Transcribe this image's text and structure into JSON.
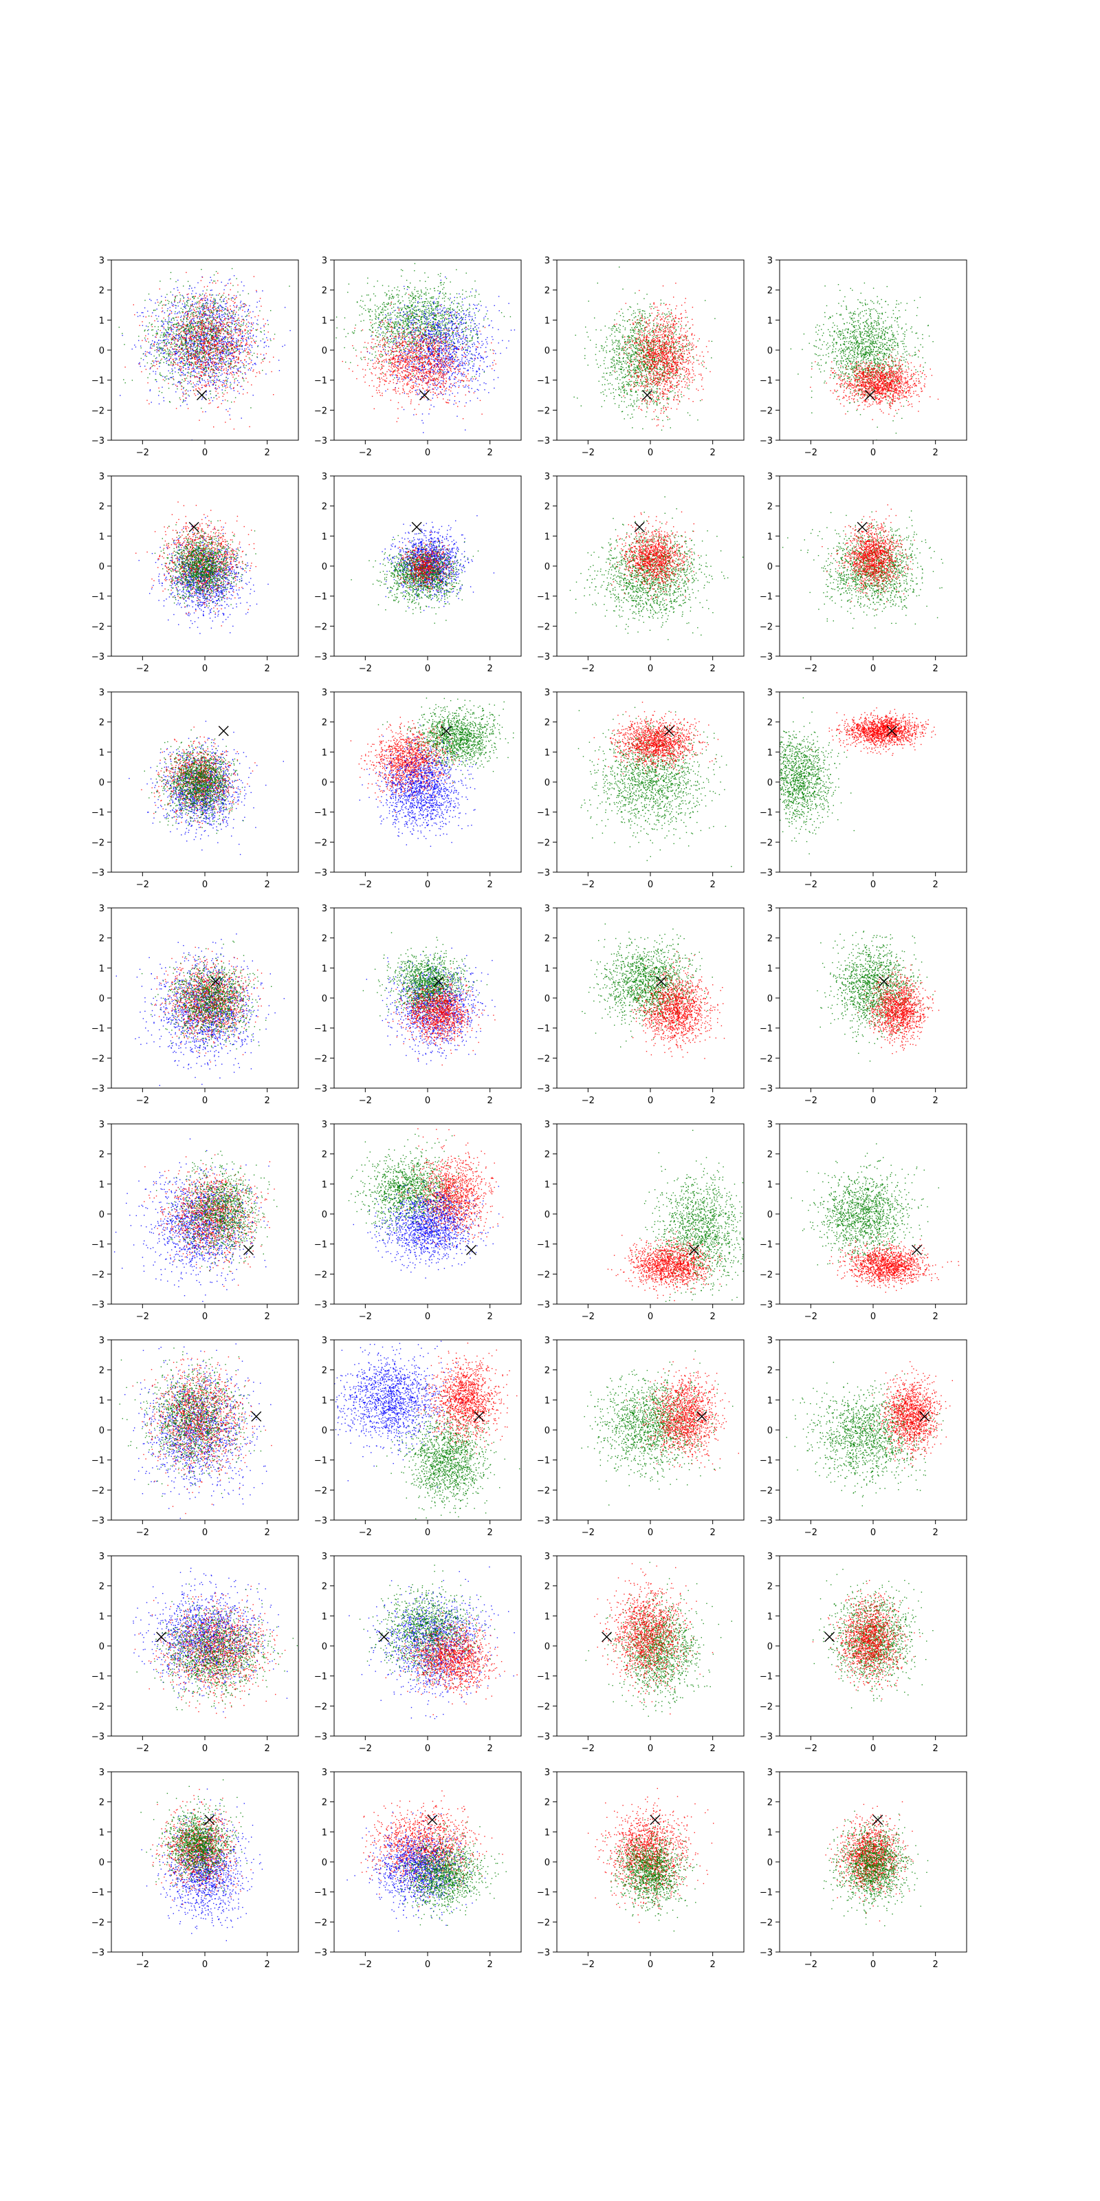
{
  "chart_data": {
    "type": "scatter",
    "layout": {
      "rows": 8,
      "cols": 4
    },
    "xlim": [
      -3,
      3
    ],
    "ylim": [
      -3,
      3
    ],
    "xticks": [
      -2,
      0,
      2
    ],
    "yticks": [
      -3,
      -2,
      -1,
      0,
      1,
      2,
      3
    ],
    "grid": false,
    "legend": "none",
    "marker_style": "x",
    "colors": {
      "red": "#ff0000",
      "green": "#008000",
      "blue": "#0000ff",
      "marker": "#000000"
    },
    "rows": [
      {
        "marker": [
          -0.1,
          -1.5
        ],
        "panels": [
          {
            "clusters": [
              {
                "color": "blue",
                "mx": 0,
                "my": 0.3,
                "sx": 0.85,
                "sy": 0.85,
                "n": 1400
              },
              {
                "color": "green",
                "mx": -0.2,
                "my": 0.4,
                "sx": 0.8,
                "sy": 0.8,
                "n": 1100
              },
              {
                "color": "red",
                "mx": 0.1,
                "my": 0.2,
                "sx": 0.8,
                "sy": 0.8,
                "n": 1100
              }
            ]
          },
          {
            "clusters": [
              {
                "color": "green",
                "mx": -0.3,
                "my": 0.9,
                "sx": 0.9,
                "sy": 0.65,
                "n": 1300
              },
              {
                "color": "blue",
                "mx": 0.4,
                "my": 0.1,
                "sx": 0.8,
                "sy": 0.8,
                "n": 1200
              },
              {
                "color": "red",
                "mx": -0.3,
                "my": -0.4,
                "sx": 0.75,
                "sy": 0.6,
                "n": 1200
              }
            ]
          },
          {
            "clusters": [
              {
                "color": "green",
                "mx": -0.2,
                "my": -0.3,
                "sx": 0.7,
                "sy": 0.8,
                "n": 1300
              },
              {
                "color": "red",
                "mx": 0.4,
                "my": -0.2,
                "sx": 0.5,
                "sy": 0.75,
                "n": 1300
              }
            ]
          },
          {
            "clusters": [
              {
                "color": "green",
                "mx": -0.2,
                "my": 0,
                "sx": 0.7,
                "sy": 0.75,
                "n": 1300
              },
              {
                "color": "red",
                "mx": 0.2,
                "my": -1.1,
                "sx": 0.6,
                "sy": 0.35,
                "n": 1300
              }
            ]
          }
        ]
      },
      {
        "marker": [
          -0.35,
          1.3
        ],
        "panels": [
          {
            "clusters": [
              {
                "color": "blue",
                "mx": 0,
                "my": -0.4,
                "sx": 0.6,
                "sy": 0.6,
                "n": 1200
              },
              {
                "color": "red",
                "mx": -0.1,
                "my": 0.2,
                "sx": 0.6,
                "sy": 0.6,
                "n": 1000
              },
              {
                "color": "green",
                "mx": -0.1,
                "my": 0,
                "sx": 0.5,
                "sy": 0.5,
                "n": 1200
              }
            ]
          },
          {
            "clusters": [
              {
                "color": "blue",
                "mx": 0,
                "my": 0.1,
                "sx": 0.5,
                "sy": 0.5,
                "n": 1400
              },
              {
                "color": "green",
                "mx": -0.2,
                "my": -0.3,
                "sx": 0.55,
                "sy": 0.45,
                "n": 1200
              },
              {
                "color": "red",
                "mx": -0.1,
                "my": 0,
                "sx": 0.35,
                "sy": 0.35,
                "n": 500
              }
            ]
          },
          {
            "clusters": [
              {
                "color": "green",
                "mx": 0,
                "my": -0.3,
                "sx": 0.8,
                "sy": 0.7,
                "n": 1400
              },
              {
                "color": "red",
                "mx": 0.1,
                "my": 0.3,
                "sx": 0.45,
                "sy": 0.45,
                "n": 1100
              }
            ]
          },
          {
            "clusters": [
              {
                "color": "green",
                "mx": 0,
                "my": -0.1,
                "sx": 0.75,
                "sy": 0.65,
                "n": 1300
              },
              {
                "color": "red",
                "mx": 0,
                "my": 0.3,
                "sx": 0.4,
                "sy": 0.5,
                "n": 1200
              }
            ]
          }
        ]
      },
      {
        "marker": [
          0.6,
          1.7
        ],
        "panels": [
          {
            "clusters": [
              {
                "color": "blue",
                "mx": -0.1,
                "my": -0.3,
                "sx": 0.6,
                "sy": 0.65,
                "n": 1200
              },
              {
                "color": "red",
                "mx": -0.2,
                "my": 0.1,
                "sx": 0.55,
                "sy": 0.55,
                "n": 900
              },
              {
                "color": "green",
                "mx": -0.2,
                "my": 0,
                "sx": 0.5,
                "sy": 0.55,
                "n": 1300
              }
            ]
          },
          {
            "clusters": [
              {
                "color": "green",
                "mx": 0.9,
                "my": 1.5,
                "sx": 0.65,
                "sy": 0.45,
                "n": 1300
              },
              {
                "color": "red",
                "mx": -0.6,
                "my": 0.7,
                "sx": 0.55,
                "sy": 0.5,
                "n": 1200
              },
              {
                "color": "blue",
                "mx": -0.2,
                "my": -0.2,
                "sx": 0.6,
                "sy": 0.65,
                "n": 1300
              }
            ]
          },
          {
            "clusters": [
              {
                "color": "green",
                "mx": 0,
                "my": 0.1,
                "sx": 0.85,
                "sy": 0.8,
                "n": 1400
              },
              {
                "color": "red",
                "mx": 0.2,
                "my": 1.3,
                "sx": 0.6,
                "sy": 0.35,
                "n": 1300
              }
            ]
          },
          {
            "clusters": [
              {
                "color": "green",
                "mx": -2.4,
                "my": 0.1,
                "sx": 0.5,
                "sy": 0.75,
                "n": 1200
              },
              {
                "color": "red",
                "mx": 0.3,
                "my": 1.7,
                "sx": 0.6,
                "sy": 0.25,
                "n": 1400
              }
            ]
          }
        ]
      },
      {
        "marker": [
          0.35,
          0.55
        ],
        "panels": [
          {
            "clusters": [
              {
                "color": "blue",
                "mx": 0,
                "my": -0.4,
                "sx": 0.75,
                "sy": 0.8,
                "n": 1300
              },
              {
                "color": "red",
                "mx": 0.1,
                "my": -0.1,
                "sx": 0.6,
                "sy": 0.6,
                "n": 1100
              },
              {
                "color": "green",
                "mx": 0.2,
                "my": -0.1,
                "sx": 0.6,
                "sy": 0.6,
                "n": 1100
              }
            ]
          },
          {
            "clusters": [
              {
                "color": "blue",
                "mx": 0.2,
                "my": -0.3,
                "sx": 0.65,
                "sy": 0.65,
                "n": 1200
              },
              {
                "color": "green",
                "mx": 0,
                "my": 0.5,
                "sx": 0.55,
                "sy": 0.45,
                "n": 1200
              },
              {
                "color": "red",
                "mx": 0.3,
                "my": -0.5,
                "sx": 0.5,
                "sy": 0.45,
                "n": 1100
              }
            ]
          },
          {
            "clusters": [
              {
                "color": "green",
                "mx": -0.1,
                "my": 0.5,
                "sx": 0.7,
                "sy": 0.6,
                "n": 1400
              },
              {
                "color": "red",
                "mx": 0.8,
                "my": -0.4,
                "sx": 0.5,
                "sy": 0.55,
                "n": 1300
              }
            ]
          },
          {
            "clusters": [
              {
                "color": "green",
                "mx": 0,
                "my": 0.4,
                "sx": 0.6,
                "sy": 0.7,
                "n": 1300
              },
              {
                "color": "red",
                "mx": 0.8,
                "my": -0.4,
                "sx": 0.4,
                "sy": 0.5,
                "n": 1200
              }
            ]
          }
        ]
      },
      {
        "marker": [
          1.4,
          -1.2
        ],
        "panels": [
          {
            "clusters": [
              {
                "color": "blue",
                "mx": -0.2,
                "my": -0.3,
                "sx": 0.75,
                "sy": 0.8,
                "n": 1300
              },
              {
                "color": "red",
                "mx": 0.2,
                "my": 0,
                "sx": 0.7,
                "sy": 0.7,
                "n": 1100
              },
              {
                "color": "green",
                "mx": 0.5,
                "my": 0.1,
                "sx": 0.6,
                "sy": 0.7,
                "n": 1100
              }
            ]
          },
          {
            "clusters": [
              {
                "color": "green",
                "mx": -0.6,
                "my": 0.8,
                "sx": 0.7,
                "sy": 0.6,
                "n": 1200
              },
              {
                "color": "red",
                "mx": 0.8,
                "my": 0.6,
                "sx": 0.55,
                "sy": 0.65,
                "n": 1200
              },
              {
                "color": "blue",
                "mx": 0,
                "my": -0.4,
                "sx": 0.7,
                "sy": 0.55,
                "n": 1300
              }
            ]
          },
          {
            "clusters": [
              {
                "color": "green",
                "mx": 1.6,
                "my": -0.5,
                "sx": 0.65,
                "sy": 0.9,
                "n": 1300
              },
              {
                "color": "red",
                "mx": 0.6,
                "my": -1.7,
                "sx": 0.6,
                "sy": 0.35,
                "n": 1300
              }
            ]
          },
          {
            "clusters": [
              {
                "color": "green",
                "mx": -0.3,
                "my": 0,
                "sx": 0.7,
                "sy": 0.65,
                "n": 1300
              },
              {
                "color": "red",
                "mx": 0.4,
                "my": -1.7,
                "sx": 0.6,
                "sy": 0.3,
                "n": 1300
              }
            ]
          }
        ]
      },
      {
        "marker": [
          1.65,
          0.45
        ],
        "panels": [
          {
            "clusters": [
              {
                "color": "blue",
                "mx": -0.2,
                "my": 0,
                "sx": 0.8,
                "sy": 0.95,
                "n": 1300
              },
              {
                "color": "red",
                "mx": -0.2,
                "my": 0.4,
                "sx": 0.7,
                "sy": 0.8,
                "n": 1200
              },
              {
                "color": "green",
                "mx": -0.4,
                "my": 0.4,
                "sx": 0.7,
                "sy": 0.8,
                "n": 1100
              }
            ]
          },
          {
            "clusters": [
              {
                "color": "blue",
                "mx": -1.2,
                "my": 1,
                "sx": 0.75,
                "sy": 0.7,
                "n": 1400
              },
              {
                "color": "red",
                "mx": 1.2,
                "my": 1,
                "sx": 0.5,
                "sy": 0.6,
                "n": 1300
              },
              {
                "color": "green",
                "mx": 0.6,
                "my": -1,
                "sx": 0.6,
                "sy": 0.7,
                "n": 1300
              }
            ]
          },
          {
            "clusters": [
              {
                "color": "green",
                "mx": 0,
                "my": 0.2,
                "sx": 0.8,
                "sy": 0.75,
                "n": 1400
              },
              {
                "color": "red",
                "mx": 1.1,
                "my": 0.5,
                "sx": 0.5,
                "sy": 0.6,
                "n": 1300
              }
            ]
          },
          {
            "clusters": [
              {
                "color": "green",
                "mx": -0.2,
                "my": -0.2,
                "sx": 0.85,
                "sy": 0.75,
                "n": 1300
              },
              {
                "color": "red",
                "mx": 1.2,
                "my": 0.5,
                "sx": 0.4,
                "sy": 0.55,
                "n": 1300
              }
            ]
          }
        ]
      },
      {
        "marker": [
          -1.4,
          0.3
        ],
        "panels": [
          {
            "clusters": [
              {
                "color": "blue",
                "mx": 0,
                "my": 0.3,
                "sx": 0.85,
                "sy": 0.75,
                "n": 1400
              },
              {
                "color": "red",
                "mx": 0.3,
                "my": -0.1,
                "sx": 0.8,
                "sy": 0.7,
                "n": 1200
              },
              {
                "color": "green",
                "mx": 0.3,
                "my": -0.2,
                "sx": 0.8,
                "sy": 0.65,
                "n": 1100
              }
            ]
          },
          {
            "clusters": [
              {
                "color": "blue",
                "mx": 0.2,
                "my": 0.1,
                "sx": 0.8,
                "sy": 0.75,
                "n": 1300
              },
              {
                "color": "green",
                "mx": 0,
                "my": 0.5,
                "sx": 0.7,
                "sy": 0.65,
                "n": 1100
              },
              {
                "color": "red",
                "mx": 0.8,
                "my": -0.4,
                "sx": 0.6,
                "sy": 0.5,
                "n": 1200
              }
            ]
          },
          {
            "clusters": [
              {
                "color": "green",
                "mx": 0.3,
                "my": -0.1,
                "sx": 0.6,
                "sy": 0.75,
                "n": 1300
              },
              {
                "color": "red",
                "mx": -0.1,
                "my": 0.4,
                "sx": 0.55,
                "sy": 0.75,
                "n": 1300
              }
            ]
          },
          {
            "clusters": [
              {
                "color": "green",
                "mx": 0,
                "my": 0.3,
                "sx": 0.6,
                "sy": 0.75,
                "n": 1300
              },
              {
                "color": "red",
                "mx": -0.1,
                "my": 0.2,
                "sx": 0.45,
                "sy": 0.6,
                "n": 1300
              }
            ]
          }
        ]
      },
      {
        "marker": [
          0.15,
          1.4
        ],
        "panels": [
          {
            "clusters": [
              {
                "color": "blue",
                "mx": 0,
                "my": -0.3,
                "sx": 0.6,
                "sy": 0.75,
                "n": 1200
              },
              {
                "color": "red",
                "mx": -0.2,
                "my": 0.4,
                "sx": 0.55,
                "sy": 0.6,
                "n": 1000
              },
              {
                "color": "green",
                "mx": -0.2,
                "my": 0.6,
                "sx": 0.5,
                "sy": 0.55,
                "n": 1200
              }
            ]
          },
          {
            "clusters": [
              {
                "color": "red",
                "mx": -0.1,
                "my": 0.5,
                "sx": 0.75,
                "sy": 0.6,
                "n": 1300
              },
              {
                "color": "blue",
                "mx": -0.3,
                "my": -0.2,
                "sx": 0.65,
                "sy": 0.6,
                "n": 1200
              },
              {
                "color": "green",
                "mx": 0.5,
                "my": -0.4,
                "sx": 0.6,
                "sy": 0.55,
                "n": 1200
              }
            ]
          },
          {
            "clusters": [
              {
                "color": "red",
                "mx": -0.1,
                "my": 0.3,
                "sx": 0.6,
                "sy": 0.65,
                "n": 1400
              },
              {
                "color": "green",
                "mx": 0,
                "my": -0.3,
                "sx": 0.5,
                "sy": 0.55,
                "n": 1200
              }
            ]
          },
          {
            "clusters": [
              {
                "color": "red",
                "mx": -0.1,
                "my": 0.2,
                "sx": 0.45,
                "sy": 0.55,
                "n": 1300
              },
              {
                "color": "green",
                "mx": 0,
                "my": -0.1,
                "sx": 0.55,
                "sy": 0.6,
                "n": 1300
              }
            ]
          }
        ]
      }
    ]
  }
}
